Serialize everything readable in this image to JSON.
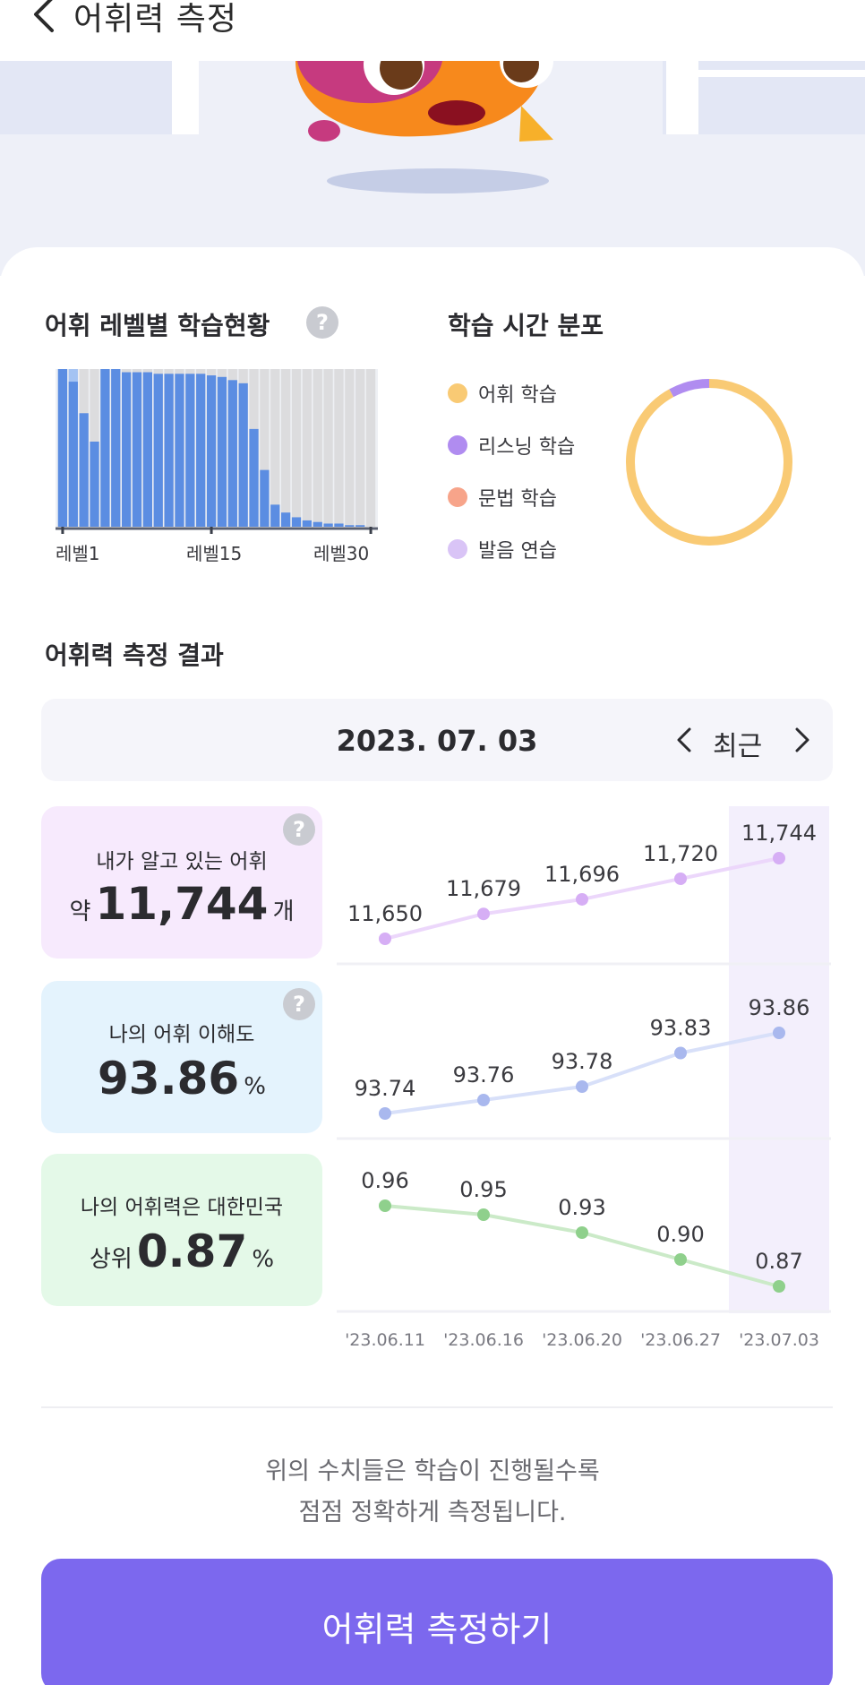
{
  "header": {
    "title": "어휘력 측정",
    "back_icon": "chevron-left-icon"
  },
  "level_section": {
    "title": "어휘 레벨별 학습현황",
    "help_glyph": "?",
    "x_labels": [
      "레벨1",
      "레벨15",
      "레벨30"
    ]
  },
  "time_section": {
    "title": "학습 시간 분포",
    "legend": [
      {
        "label": "어휘 학습",
        "color": "#f9ca74"
      },
      {
        "label": "리스닝 학습",
        "color": "#b08cf0"
      },
      {
        "label": "문법 학습",
        "color": "#f7a48a"
      },
      {
        "label": "발음 연습",
        "color": "#d9c4f6"
      }
    ]
  },
  "results_section": {
    "title": "어휘력 측정 결과",
    "date": "2023. 07. 03",
    "nav_label": "최근"
  },
  "stats": {
    "vocab": {
      "label": "내가 알고 있는 어휘",
      "prefix": "약",
      "value": "11,744",
      "unit": "개",
      "help_glyph": "?"
    },
    "comprehension": {
      "label": "나의 어휘 이해도",
      "value": "93.86",
      "unit": "%",
      "help_glyph": "?"
    },
    "rank": {
      "label": "나의 어휘력은 대한민국",
      "prefix": "상위",
      "value": "0.87",
      "unit": "%"
    }
  },
  "footer": {
    "note_line1": "위의 수치들은 학습이 진행될수록",
    "note_line2": "점점 정확하게 측정됩니다.",
    "button_label": "어휘력 측정하기"
  },
  "chart_data": [
    {
      "type": "bar",
      "categories": [
        "레벨1",
        "2",
        "3",
        "4",
        "5",
        "6",
        "7",
        "8",
        "9",
        "10",
        "11",
        "12",
        "13",
        "14",
        "15",
        "16",
        "17",
        "18",
        "19",
        "20",
        "21",
        "22",
        "23",
        "24",
        "25",
        "26",
        "27",
        "28",
        "29",
        "레벨30"
      ],
      "series": [
        {
          "values": [
            1.0,
            0.92,
            0.72,
            0.54,
            1.0,
            1.0,
            0.98,
            0.98,
            0.98,
            0.97,
            0.97,
            0.97,
            0.97,
            0.97,
            0.96,
            0.95,
            0.93,
            0.91,
            0.62,
            0.36,
            0.14,
            0.09,
            0.06,
            0.04,
            0.03,
            0.02,
            0.02,
            0.01,
            0.01,
            0.0
          ]
        },
        {
          "values": [
            1.0,
            1.0,
            1.0,
            1.0,
            1.0,
            1.0,
            1.0,
            1.0,
            1.0,
            1.0,
            1.0,
            1.0,
            1.0,
            1.0,
            1.0,
            1.0,
            1.0,
            1.0,
            1.0,
            1.0,
            1.0,
            1.0,
            1.0,
            1.0,
            1.0,
            1.0,
            1.0,
            1.0,
            1.0,
            1.0
          ]
        }
      ],
      "colors": {
        "learned": "#5b8de2",
        "partial": "#a4c3f3",
        "background": "#dcdcde"
      },
      "x_tick_labels": [
        "레벨1",
        "레벨15",
        "레벨30"
      ],
      "ylim": [
        0,
        1
      ]
    },
    {
      "type": "pie",
      "categories": [
        "어휘 학습",
        "리스닝 학습",
        "문법 학습",
        "발음 연습"
      ],
      "values": [
        92,
        8,
        0,
        0
      ],
      "colors": [
        "#f9ca74",
        "#b08cf0",
        "#f7a48a",
        "#d9c4f6"
      ],
      "donut": true
    },
    {
      "type": "line",
      "x": [
        "'23.06.11",
        "'23.06.16",
        "'23.06.20",
        "'23.06.27",
        "'23.07.03"
      ],
      "series": [
        {
          "values": [
            11650,
            11679,
            11696,
            11720,
            11744
          ],
          "labels": [
            "11,650",
            "11,679",
            "11,696",
            "11,720",
            "11,744"
          ],
          "color": "#d6aef5",
          "line": "#ecd7fb"
        },
        {
          "values": [
            93.74,
            93.76,
            93.78,
            93.83,
            93.86
          ],
          "labels": [
            "93.74",
            "93.76",
            "93.78",
            "93.83",
            "93.86"
          ],
          "color": "#a9b8ee",
          "line": "#d8e0f9"
        },
        {
          "values": [
            0.96,
            0.95,
            0.93,
            0.9,
            0.87
          ],
          "labels": [
            "0.96",
            "0.95",
            "0.93",
            "0.90",
            "0.87"
          ],
          "color": "#8fd08c",
          "line": "#cbeac8"
        }
      ],
      "highlight_index": 4
    }
  ]
}
